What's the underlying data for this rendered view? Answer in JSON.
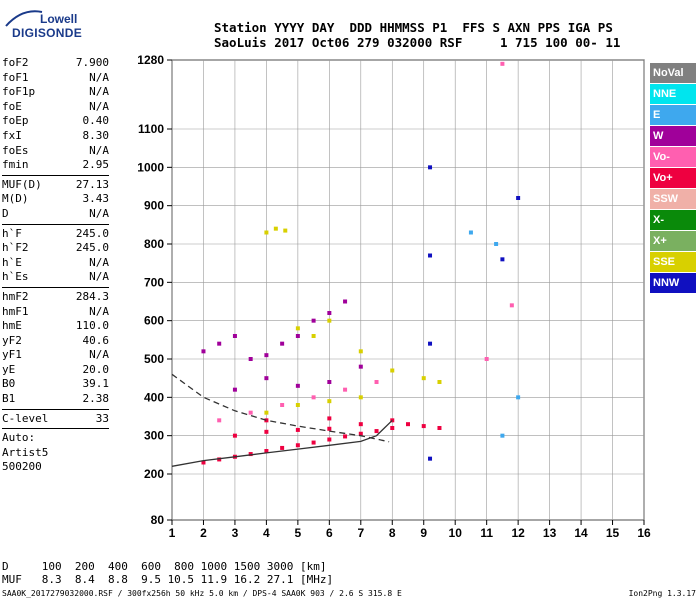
{
  "logo": {
    "line1": "Lowell",
    "line2": "DIGISONDE"
  },
  "header": {
    "line1": "Station YYYY DAY  DDD HHMMSS P1  FFS S AXN PPS IGA PS",
    "line2": "SaoLuis 2017 Oct06 279 032000 RSF     1 715 100 00- 11"
  },
  "params_group1": [
    {
      "label": "foF2",
      "value": "7.900"
    },
    {
      "label": "foF1",
      "value": "N/A"
    },
    {
      "label": "foF1p",
      "value": "N/A"
    },
    {
      "label": "foE",
      "value": "N/A"
    },
    {
      "label": "foEp",
      "value": "0.40"
    },
    {
      "label": "fxI",
      "value": "8.30"
    },
    {
      "label": "foEs",
      "value": "N/A"
    },
    {
      "label": "fmin",
      "value": "2.95"
    }
  ],
  "params_group2": [
    {
      "label": "MUF(D)",
      "value": "27.13"
    },
    {
      "label": "M(D)",
      "value": "3.43"
    },
    {
      "label": "D",
      "value": "N/A"
    }
  ],
  "params_group3": [
    {
      "label": "h`F",
      "value": "245.0"
    },
    {
      "label": "h`F2",
      "value": "245.0"
    },
    {
      "label": "h`E",
      "value": "N/A"
    },
    {
      "label": "h`Es",
      "value": "N/A"
    }
  ],
  "params_group4": [
    {
      "label": "hmF2",
      "value": "284.3"
    },
    {
      "label": "hmF1",
      "value": "N/A"
    },
    {
      "label": "hmE",
      "value": "110.0"
    },
    {
      "label": "yF2",
      "value": "40.6"
    },
    {
      "label": "yF1",
      "value": "N/A"
    },
    {
      "label": "yE",
      "value": "20.0"
    },
    {
      "label": "B0",
      "value": "39.1"
    },
    {
      "label": "B1",
      "value": "2.38"
    }
  ],
  "clevel": {
    "label": "C-level",
    "value": "33"
  },
  "auto": {
    "line1": "Auto:",
    "line2": "Artist5",
    "line3": "500200"
  },
  "legend": [
    {
      "label": "NoVal",
      "color": "#808080"
    },
    {
      "label": "NNE",
      "color": "#00e5ee"
    },
    {
      "label": "E",
      "color": "#3ea8ee"
    },
    {
      "label": "W",
      "color": "#a0009a"
    },
    {
      "label": "Vo-",
      "color": "#ff5fb0"
    },
    {
      "label": "Vo+",
      "color": "#ee0040"
    },
    {
      "label": "SSW",
      "color": "#f0b0a8"
    },
    {
      "label": "X-",
      "color": "#0a8a0a"
    },
    {
      "label": "X+",
      "color": "#7ab060"
    },
    {
      "label": "SSE",
      "color": "#d8d000"
    },
    {
      "label": "NNW",
      "color": "#1010c0"
    }
  ],
  "muf_table": {
    "d_line": "D     100  200  400  600  800 1000 1500 3000 [km]",
    "muf_line": "MUF   8.3  8.4  8.8  9.5 10.5 11.9 16.2 27.1 [MHz]"
  },
  "footer": {
    "left": "SAA0K_2017279032000.RSF / 300fx256h 50 kHz 5.0 km / DPS-4 SAA0K 903 / 2.6 S 315.8 E",
    "right": "Ion2Png 1.3.17"
  },
  "chart_data": {
    "type": "scatter",
    "title": "",
    "xlabel": "",
    "ylabel": "",
    "x_unit": "MHz",
    "y_unit": "km",
    "xlim": [
      1,
      16
    ],
    "ylim": [
      80,
      1280
    ],
    "xticks": [
      1,
      2,
      3,
      4,
      5,
      6,
      7,
      8,
      9,
      10,
      11,
      12,
      13,
      14,
      15,
      16
    ],
    "yticks": [
      80,
      200,
      300,
      400,
      500,
      600,
      700,
      800,
      900,
      1000,
      1100,
      1280
    ],
    "grid": true,
    "series": [
      {
        "name": "Vo+",
        "points": [
          [
            2,
            230
          ],
          [
            2.5,
            238
          ],
          [
            3,
            245
          ],
          [
            3.5,
            252
          ],
          [
            4,
            260
          ],
          [
            4.5,
            268
          ],
          [
            5,
            275
          ],
          [
            5.5,
            282
          ],
          [
            6,
            290
          ],
          [
            6.5,
            298
          ],
          [
            7,
            305
          ],
          [
            7.5,
            312
          ],
          [
            8,
            320
          ],
          [
            8.5,
            330
          ],
          [
            9,
            325
          ],
          [
            9.5,
            320
          ],
          [
            3,
            300
          ],
          [
            4,
            310
          ],
          [
            5,
            315
          ],
          [
            6,
            318
          ],
          [
            7,
            330
          ],
          [
            8,
            340
          ],
          [
            4,
            340
          ],
          [
            6,
            345
          ]
        ]
      },
      {
        "name": "W",
        "points": [
          [
            2,
            520
          ],
          [
            2.5,
            540
          ],
          [
            3,
            560
          ],
          [
            3.5,
            500
          ],
          [
            4,
            510
          ],
          [
            4.5,
            540
          ],
          [
            5,
            560
          ],
          [
            5.5,
            600
          ],
          [
            6,
            620
          ],
          [
            6.5,
            650
          ],
          [
            7,
            480
          ],
          [
            3,
            420
          ],
          [
            4,
            450
          ],
          [
            5,
            430
          ],
          [
            6,
            440
          ]
        ]
      },
      {
        "name": "SSE",
        "points": [
          [
            4,
            830
          ],
          [
            4.3,
            840
          ],
          [
            4.6,
            835
          ],
          [
            5,
            580
          ],
          [
            5.5,
            560
          ],
          [
            6,
            600
          ],
          [
            7,
            520
          ],
          [
            8,
            470
          ],
          [
            9,
            450
          ],
          [
            9.5,
            440
          ],
          [
            5,
            380
          ],
          [
            6,
            390
          ],
          [
            7,
            400
          ],
          [
            4,
            360
          ]
        ]
      },
      {
        "name": "NNW",
        "points": [
          [
            9.2,
            1000
          ],
          [
            9.2,
            770
          ],
          [
            9.2,
            540
          ],
          [
            9.2,
            240
          ],
          [
            11.5,
            760
          ],
          [
            12,
            920
          ]
        ]
      },
      {
        "name": "Vo-",
        "points": [
          [
            2.5,
            340
          ],
          [
            3.5,
            360
          ],
          [
            4.5,
            380
          ],
          [
            5.5,
            400
          ],
          [
            6.5,
            420
          ],
          [
            7.5,
            440
          ],
          [
            11,
            500
          ],
          [
            11.8,
            640
          ],
          [
            11.5,
            1270
          ]
        ]
      },
      {
        "name": "E",
        "points": [
          [
            10.5,
            830
          ],
          [
            11.3,
            800
          ],
          [
            12,
            400
          ],
          [
            11.5,
            300
          ]
        ]
      }
    ],
    "curves": [
      {
        "name": "trace",
        "style": "solid",
        "points": [
          [
            1,
            220
          ],
          [
            2,
            235
          ],
          [
            3,
            245
          ],
          [
            4,
            255
          ],
          [
            5,
            265
          ],
          [
            6,
            275
          ],
          [
            7,
            285
          ],
          [
            7.5,
            300
          ],
          [
            8,
            340
          ]
        ]
      },
      {
        "name": "profile",
        "style": "dashed",
        "points": [
          [
            1,
            460
          ],
          [
            1.5,
            430
          ],
          [
            2,
            400
          ],
          [
            3,
            365
          ],
          [
            4,
            340
          ],
          [
            5,
            325
          ],
          [
            6,
            312
          ],
          [
            7,
            300
          ],
          [
            7.9,
            284
          ]
        ]
      }
    ]
  }
}
